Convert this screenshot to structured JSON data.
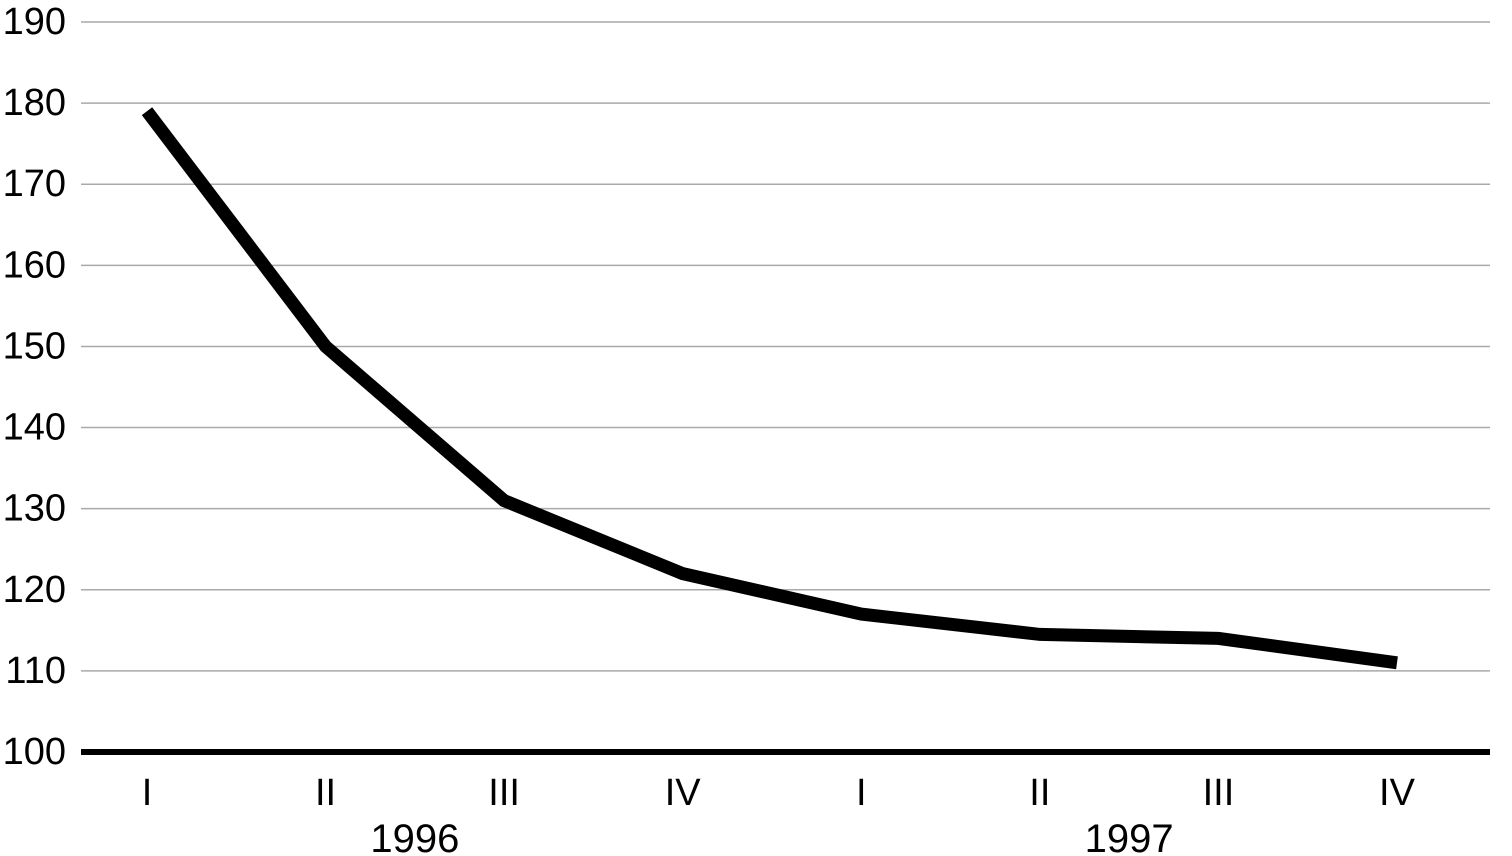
{
  "chart_data": {
    "type": "line",
    "title": "",
    "subtitle": "",
    "legend": "none",
    "grid": "horizontal-only",
    "x_axis": {
      "quarter_labels": [
        "I",
        "II",
        "III",
        "IV",
        "I",
        "II",
        "III",
        "IV"
      ],
      "year_groups": [
        {
          "label": "1996",
          "quarter_indexes": [
            0,
            3
          ]
        },
        {
          "label": "1997",
          "quarter_indexes": [
            4,
            7
          ]
        }
      ]
    },
    "y_axis": {
      "tick_labels": [
        "100",
        "110",
        "120",
        "130",
        "140",
        "150",
        "160",
        "170",
        "180",
        "190"
      ],
      "min": 100,
      "max": 190,
      "tick_step": 10,
      "baseline_value": 100
    },
    "series": [
      {
        "name": "quarterly-index",
        "values": [
          179,
          150,
          131,
          122,
          117,
          114.5,
          114,
          111
        ],
        "points": [
          {
            "year": "1996",
            "quarter": "I",
            "value": 179
          },
          {
            "year": "1996",
            "quarter": "II",
            "value": 150
          },
          {
            "year": "1996",
            "quarter": "III",
            "value": 131
          },
          {
            "year": "1996",
            "quarter": "IV",
            "value": 122
          },
          {
            "year": "1997",
            "quarter": "I",
            "value": 117
          },
          {
            "year": "1997",
            "quarter": "II",
            "value": 114.5
          },
          {
            "year": "1997",
            "quarter": "III",
            "value": 114
          },
          {
            "year": "1997",
            "quarter": "IV",
            "value": 111
          }
        ]
      }
    ],
    "colors": {
      "background": "#ffffff",
      "line": "#000000",
      "baseline": "#000000",
      "gridline": "#a9a9a9",
      "text": "#000000"
    }
  }
}
